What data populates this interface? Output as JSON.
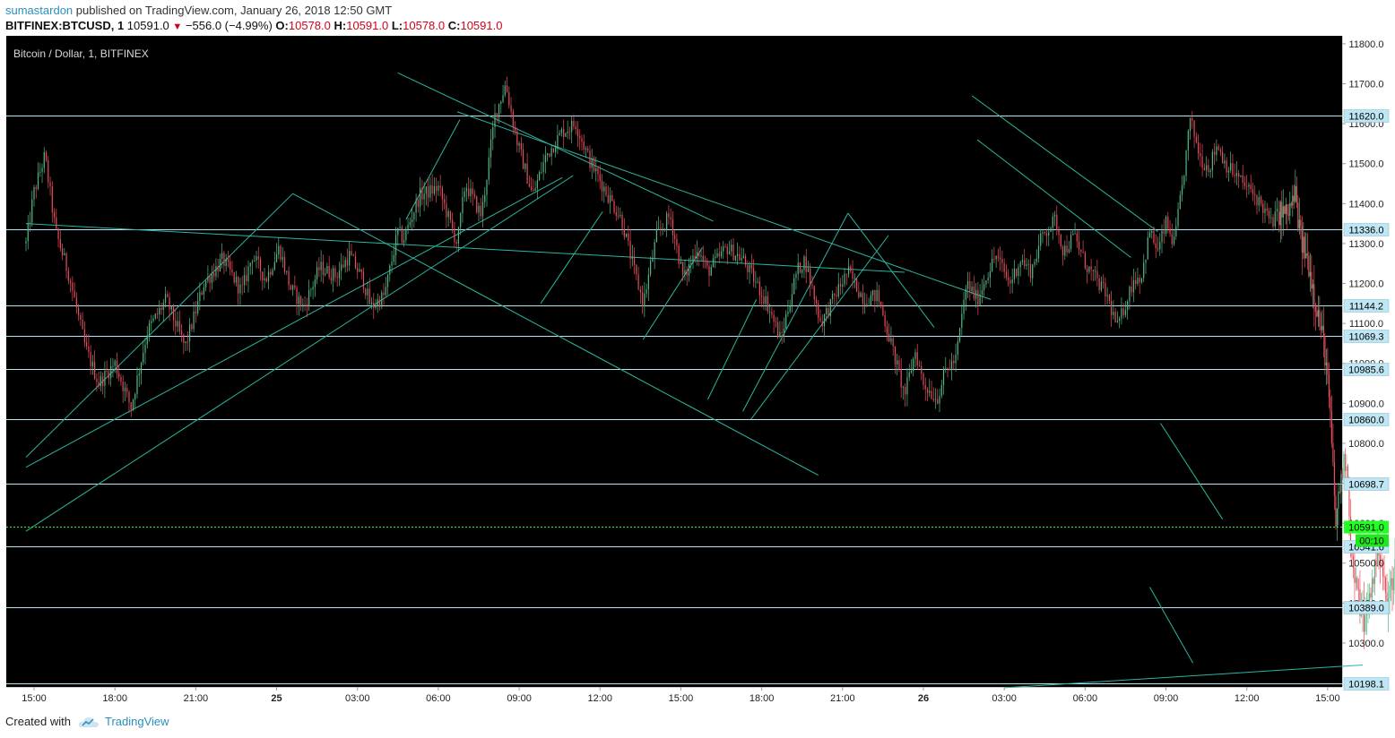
{
  "header": {
    "user": "sumastardon",
    "published_text": "published on TradingView.com, January 26, 2018 12:50 GMT",
    "symbol": "BITFINEX:BTCUSD, 1",
    "last": "10591.0",
    "change": "−556.0 (−4.99%)",
    "o_label": "O:",
    "o_value": "10578.0",
    "h_label": "H:",
    "h_value": "10591.0",
    "l_label": "L:",
    "l_value": "10578.0",
    "c_label": "C:",
    "c_value": "10591.0"
  },
  "footer": {
    "created_with": "Created with",
    "brand": "TradingView"
  },
  "colors": {
    "background": "#000000",
    "up": "#53b987",
    "down": "#eb4d5c",
    "trendline": "#2bb5a0",
    "level": "#b3e5f5",
    "last_price": "#22ff22",
    "axis_text": "#222222"
  },
  "chart_data": {
    "type": "candlestick",
    "title": "Bitcoin / Dollar, 1, BITFINEX",
    "interval": "1 minute",
    "ylim": [
      10190,
      11820
    ],
    "y_ticks": [
      10300,
      10400,
      10500,
      10600,
      10700,
      10800,
      10900,
      11000,
      11100,
      11200,
      11300,
      11400,
      11500,
      11600,
      11700,
      11800
    ],
    "y_tick_labels": [
      "10300.0",
      "10400.0",
      "10500.0",
      "10600.0",
      "10700.0",
      "10800.0",
      "10900.0",
      "11000.0",
      "11100.0",
      "11200.0",
      "11300.0",
      "11400.0",
      "11500.0",
      "11600.0",
      "11700.0",
      "11800.0"
    ],
    "x_tick_labels": [
      "15:00",
      "18:00",
      "21:00",
      "25",
      "03:00",
      "06:00",
      "09:00",
      "12:00",
      "15:00",
      "18:00",
      "21:00",
      "26",
      "03:00",
      "06:00",
      "09:00",
      "12:00",
      "15:00"
    ],
    "x_tick_hours": [
      0,
      3,
      6,
      9,
      12,
      15,
      18,
      21,
      24,
      27,
      30,
      33,
      36,
      39,
      42,
      45,
      48
    ],
    "x_start_label": "January 24, 2018 15:00 GMT",
    "last_price": {
      "value": 10591.0,
      "label": "10591.0",
      "countdown": "00:10"
    },
    "horizontal_levels": [
      {
        "value": 11620.0,
        "label": "11620.0"
      },
      {
        "value": 11336.0,
        "label": "11336.0"
      },
      {
        "value": 11144.2,
        "label": "11144.2"
      },
      {
        "value": 11069.3,
        "label": "11069.3"
      },
      {
        "value": 10985.6,
        "label": "10985.6"
      },
      {
        "value": 10860.0,
        "label": "10860.0"
      },
      {
        "value": 10698.7,
        "label": "10698.7"
      },
      {
        "value": 10541.6,
        "label": "10541.6"
      },
      {
        "value": 10389.0,
        "label": "10389.0"
      },
      {
        "value": 10198.1,
        "label": "10198.1"
      }
    ],
    "price_path_hours": [
      -0.3,
      0.0,
      0.4,
      0.8,
      1.3,
      1.9,
      2.4,
      3.0,
      3.6,
      4.2,
      4.9,
      5.6,
      6.3,
      7.0,
      7.7,
      8.1,
      8.6,
      9.1,
      9.5,
      10.0,
      10.6,
      11.2,
      11.7,
      12.2,
      12.5,
      13.0,
      13.5,
      13.7,
      14.3,
      15.0,
      15.7,
      16.0,
      16.6,
      17.1,
      17.5,
      17.9,
      18.5,
      19.0,
      19.6,
      20.1,
      20.6,
      21.3,
      21.8,
      22.2,
      22.6,
      23.1,
      23.6,
      24.1,
      24.6,
      25.0,
      25.7,
      26.3,
      26.8,
      27.2,
      27.7,
      28.3,
      28.6,
      29.2,
      29.8,
      30.2,
      30.8,
      31.3,
      31.8,
      32.3,
      32.7,
      33.0,
      33.5,
      33.8,
      34.2,
      34.6,
      35.0,
      35.4,
      35.7,
      36.2,
      36.6,
      37.0,
      37.4,
      37.9,
      38.2,
      38.6,
      39.0,
      39.4,
      39.8,
      40.2,
      40.5,
      40.8,
      41.1,
      41.4,
      41.7,
      42.0,
      42.3,
      42.6,
      42.9,
      43.3,
      43.6,
      43.9,
      44.2,
      44.6,
      45.0,
      45.3,
      45.6,
      45.9,
      46.2
    ],
    "price_path_values": [
      11300,
      11430,
      11520,
      11330,
      11220,
      11040,
      10950,
      11000,
      10890,
      11080,
      11160,
      11040,
      11200,
      11260,
      11180,
      11270,
      11210,
      11290,
      11190,
      11140,
      11240,
      11220,
      11270,
      11210,
      11140,
      11170,
      11330,
      11310,
      11420,
      11440,
      11300,
      11450,
      11370,
      11620,
      11700,
      11560,
      11420,
      11520,
      11580,
      11600,
      11510,
      11420,
      11360,
      11250,
      11150,
      11320,
      11370,
      11210,
      11290,
      11230,
      11290,
      11260,
      11200,
      11150,
      11060,
      11230,
      11260,
      11100,
      11180,
      11230,
      11160,
      11170,
      11050,
      10920,
      11030,
      10950,
      10910,
      10980,
      11010,
      11200,
      11160,
      11230,
      11270,
      11200,
      11260,
      11230,
      11320,
      11360,
      11280,
      11320,
      11250,
      11210,
      11170,
      11090,
      11150,
      11210,
      11220,
      11330,
      11280,
      11350,
      11300,
      11440,
      11610,
      11510,
      11490,
      11550,
      11500,
      11470,
      11440,
      11420,
      11390,
      11350,
      11380
    ],
    "price_path2_hours": [
      46.2,
      46.5,
      46.8,
      47.0,
      47.3,
      47.6,
      47.9,
      48.1,
      48.3,
      48.5,
      48.7,
      48.9,
      49.1,
      49.4,
      49.7,
      49.9,
      50.2,
      50.5,
      50.8,
      51.1,
      51.4,
      51.7,
      52.0,
      52.3
    ],
    "price_path2_values": [
      11380,
      11370,
      11420,
      11310,
      11250,
      11140,
      11030,
      10860,
      10600,
      10720,
      10770,
      10500,
      10420,
      10350,
      10470,
      10550,
      10390,
      10500,
      10580,
      10420,
      10480,
      10540,
      10420,
      10591
    ],
    "trendlines": [
      {
        "from": [
          -0.3,
          10765
        ],
        "to": [
          9.6,
          11425
        ]
      },
      {
        "from": [
          -0.3,
          10740
        ],
        "to": [
          19.6,
          11465
        ]
      },
      {
        "from": [
          -0.3,
          10580
        ],
        "to": [
          20.0,
          11470
        ]
      },
      {
        "from": [
          -0.3,
          11350
        ],
        "to": [
          32.3,
          11228
        ]
      },
      {
        "from": [
          13.5,
          11727
        ],
        "to": [
          25.2,
          11356
        ]
      },
      {
        "from": [
          9.6,
          11425
        ],
        "to": [
          29.1,
          10720
        ]
      },
      {
        "from": [
          15.7,
          11630
        ],
        "to": [
          35.5,
          11160
        ]
      },
      {
        "from": [
          13.8,
          11360
        ],
        "to": [
          15.8,
          11610
        ]
      },
      {
        "from": [
          18.8,
          11150
        ],
        "to": [
          21.1,
          11380
        ]
      },
      {
        "from": [
          22.6,
          11060
        ],
        "to": [
          24.8,
          11290
        ]
      },
      {
        "from": [
          25.0,
          10910
        ],
        "to": [
          26.8,
          11160
        ]
      },
      {
        "from": [
          26.3,
          10880
        ],
        "to": [
          30.2,
          11376
        ]
      },
      {
        "from": [
          26.6,
          10860
        ],
        "to": [
          31.7,
          11320
        ]
      },
      {
        "from": [
          30.2,
          11376
        ],
        "to": [
          33.4,
          11090
        ]
      },
      {
        "from": [
          34.8,
          11670
        ],
        "to": [
          41.7,
          11330
        ]
      },
      {
        "from": [
          35.0,
          11560
        ],
        "to": [
          40.7,
          11265
        ]
      },
      {
        "from": [
          41.8,
          10850
        ],
        "to": [
          44.1,
          10610
        ]
      },
      {
        "from": [
          41.4,
          10440
        ],
        "to": [
          43.0,
          10250
        ]
      },
      {
        "from": [
          36.0,
          10188
        ],
        "to": [
          49.3,
          10245
        ]
      }
    ]
  }
}
